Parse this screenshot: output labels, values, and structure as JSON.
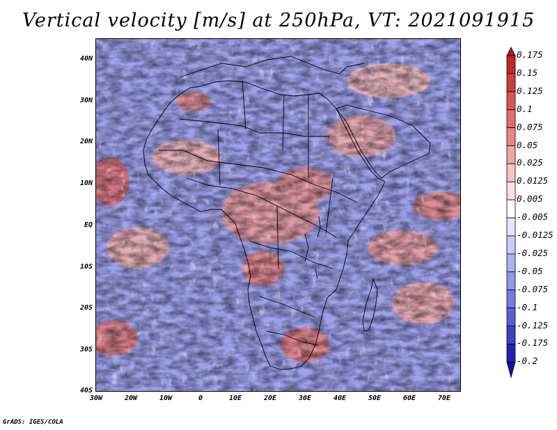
{
  "title": "Vertical velocity [m/s] at 250hPa, VT: 2021091915",
  "credit": "GrADS: IGES/COLA",
  "map": {
    "lon_range": [
      -30,
      75
    ],
    "lat_range": [
      -40,
      45
    ],
    "y_ticks": [
      "40N",
      "30N",
      "20N",
      "10N",
      "EQ",
      "10S",
      "20S",
      "30S",
      "40S"
    ],
    "x_ticks": [
      "30W",
      "20W",
      "10W",
      "0",
      "10E",
      "20E",
      "30E",
      "40E",
      "50E",
      "60E",
      "70E"
    ]
  },
  "colorbar": {
    "labels": [
      "0.175",
      "0.15",
      "0.125",
      "0.1",
      "0.075",
      "0.05",
      "0.025",
      "0.0125",
      "0.005",
      "-0.005",
      "-0.0125",
      "-0.025",
      "-0.05",
      "-0.075",
      "-0.1",
      "-0.125",
      "-0.175",
      "-0.2"
    ],
    "colors": [
      "#b2182b",
      "#c1272d",
      "#cf3c3c",
      "#db5454",
      "#e46c6c",
      "#eb8585",
      "#f2a3a3",
      "#f7c3c3",
      "#fbe0e0",
      "#ffffff",
      "#e3e4fa",
      "#c9cbf5",
      "#aeb1ef",
      "#9296e8",
      "#767be0",
      "#5a5ed6",
      "#3c40c9",
      "#2023b5",
      "#120f9e"
    ]
  },
  "colors": {
    "positive": "#d9393b",
    "negative": "#4a4fd8",
    "land_border": "#000000"
  }
}
